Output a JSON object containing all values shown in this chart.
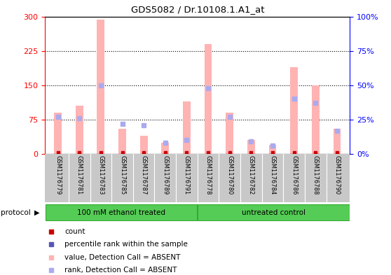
{
  "title": "GDS5082 / Dr.10108.1.A1_at",
  "samples": [
    "GSM1176779",
    "GSM1176781",
    "GSM1176783",
    "GSM1176785",
    "GSM1176787",
    "GSM1176789",
    "GSM1176791",
    "GSM1176778",
    "GSM1176780",
    "GSM1176782",
    "GSM1176784",
    "GSM1176786",
    "GSM1176788",
    "GSM1176790"
  ],
  "groups": [
    "100 mM ethanol treated",
    "untreated control"
  ],
  "group_sizes": [
    7,
    7
  ],
  "values_absent": [
    90,
    105,
    293,
    55,
    40,
    25,
    115,
    240,
    90,
    30,
    20,
    190,
    150,
    55
  ],
  "ranks_absent": [
    27,
    26,
    50,
    22,
    21,
    8,
    10,
    48,
    27,
    9,
    6,
    40,
    37,
    17
  ],
  "ylim_left": [
    0,
    300
  ],
  "ylim_right": [
    0,
    100
  ],
  "yticks_left": [
    0,
    75,
    150,
    225,
    300
  ],
  "yticks_right": [
    0,
    25,
    50,
    75,
    100
  ],
  "bar_color_absent": "#ffb3b3",
  "rank_color_absent": "#aaaaee",
  "count_color": "#cc0000",
  "bg_labels": "#c8c8c8",
  "bg_group": "#55cc55",
  "protocol_label": "protocol",
  "legend_items": [
    {
      "label": "count",
      "color": "#cc0000"
    },
    {
      "label": "percentile rank within the sample",
      "color": "#5555bb"
    },
    {
      "label": "value, Detection Call = ABSENT",
      "color": "#ffb3b3"
    },
    {
      "label": "rank, Detection Call = ABSENT",
      "color": "#aaaaee"
    }
  ]
}
